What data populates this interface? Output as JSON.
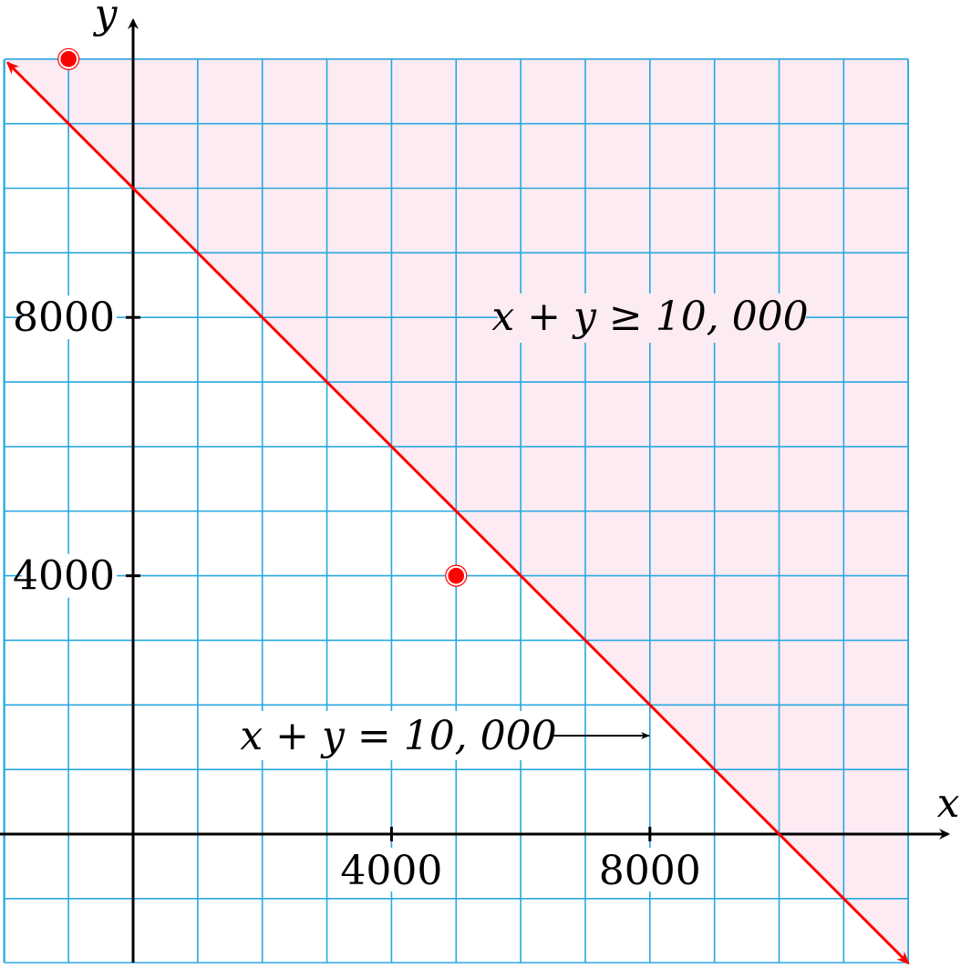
{
  "chart_data": {
    "type": "scatter",
    "xlabel": "x",
    "ylabel": "y",
    "xlim": [
      -2000,
      12000
    ],
    "ylim": [
      -1000,
      12000
    ],
    "grid": true,
    "grid_step": 1000,
    "x_ticks": [
      4000,
      8000
    ],
    "x_tick_labels": [
      "4000",
      "8000"
    ],
    "y_ticks": [
      4000,
      8000
    ],
    "y_tick_labels": [
      "4000",
      "8000"
    ],
    "boundary_line": {
      "equation": "x + y = 10,000",
      "from": [
        -2000,
        12000
      ],
      "to": [
        12000,
        -2000
      ]
    },
    "shaded_region": {
      "inequality": "x + y ≥ 10,000"
    },
    "points": [
      {
        "x": -1000,
        "y": 12000
      },
      {
        "x": 5000,
        "y": 4000
      }
    ],
    "annotations": {
      "region_label": "x + y ≥ 10, 000",
      "line_label": "x + y = 10, 000"
    },
    "colors": {
      "grid": "#29a8e0",
      "shade": "#fcebf3",
      "line": "#ff0000",
      "point": "#ff0000",
      "axis": "#000000"
    }
  }
}
